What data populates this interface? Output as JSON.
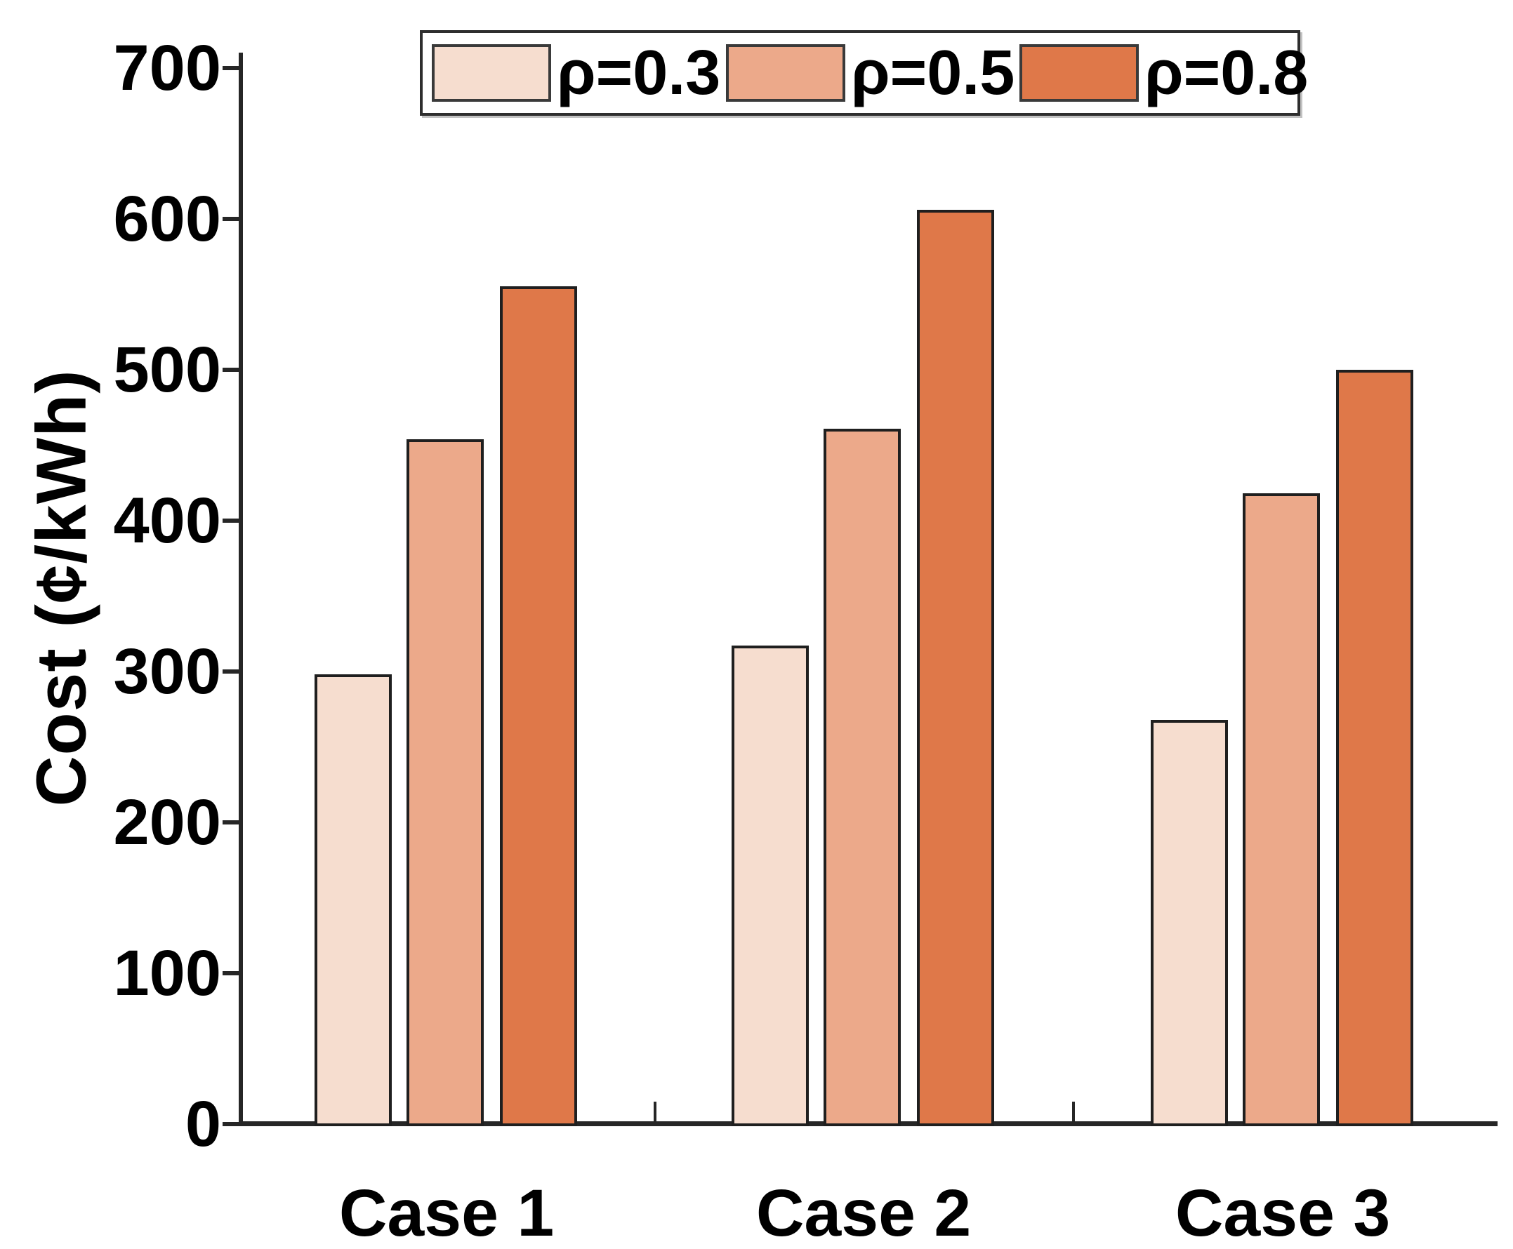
{
  "chart_data": {
    "type": "bar",
    "title": "",
    "categories": [
      "Case 1",
      "Case 2",
      "Case 3"
    ],
    "series": [
      {
        "name": "ρ=0.3",
        "color": "#F6DDCF",
        "values": [
          298,
          317,
          268
        ]
      },
      {
        "name": "ρ=0.5",
        "color": "#ECA98A",
        "values": [
          454,
          461,
          418
        ]
      },
      {
        "name": "ρ=0.8",
        "color": "#DF7849",
        "values": [
          555,
          606,
          500
        ]
      }
    ],
    "xlabel": "",
    "ylabel": "Cost (¢/kWh)",
    "ylim": [
      0,
      700
    ],
    "yticks": [
      0,
      100,
      200,
      300,
      400,
      500,
      600,
      700
    ],
    "ytick_labels": [
      "0",
      "100",
      "200",
      "300",
      "400",
      "500",
      "600",
      "700"
    ],
    "grid": false,
    "legend_position": "top-center",
    "bar_edge_color": "#1f1f1f",
    "axis_color": "#262626",
    "text_color": "#000000"
  }
}
